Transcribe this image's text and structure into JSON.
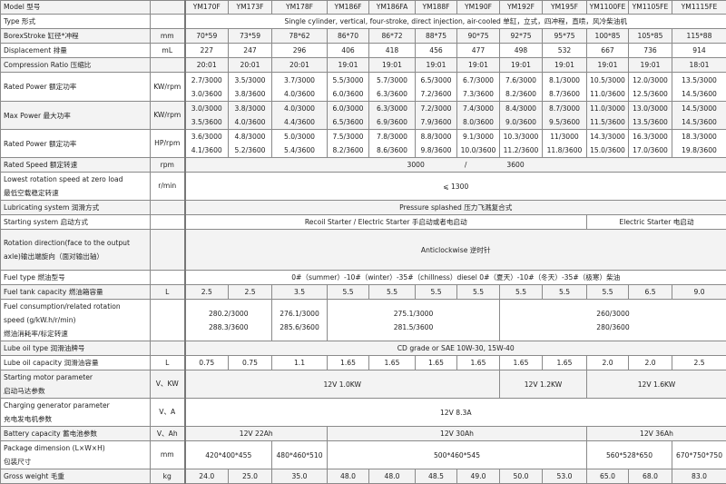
{
  "header": {
    "label": "Model 型号",
    "unit": "",
    "models": [
      "YM170F",
      "YM173F",
      "YM178F",
      "YM186F",
      "YM186FA",
      "YM188F",
      "YM190F",
      "YM192F",
      "YM195F",
      "YM1100FE",
      "YM1105FE",
      "YM1115FE"
    ]
  },
  "rows": [
    {
      "label": [
        "Type 形式"
      ],
      "unit": "",
      "cells": [
        {
          "span": 12,
          "lines": [
            "Single cylinder, vertical, four-stroke, direct injection, air-cooled 单缸，立式，四冲程，直喷，风冷柴油机"
          ]
        }
      ]
    },
    {
      "label": [
        "BorexStroke 缸径*冲程"
      ],
      "unit": "mm",
      "values": [
        "70*59",
        "73*59",
        "78*62",
        "86*70",
        "86*72",
        "88*75",
        "90*75",
        "92*75",
        "95*75",
        "100*85",
        "105*85",
        "115*88"
      ]
    },
    {
      "label": [
        "Displacement 排量"
      ],
      "unit": "mL",
      "values": [
        "227",
        "247",
        "296",
        "406",
        "418",
        "456",
        "477",
        "498",
        "532",
        "667",
        "736",
        "914"
      ]
    },
    {
      "label": [
        "Compression Ratio 压缩比"
      ],
      "unit": "",
      "values": [
        "20:01",
        "20:01",
        "20:01",
        "19:01",
        "19:01",
        "19:01",
        "19:01",
        "19:01",
        "19:01",
        "19:01",
        "19:01",
        "18:01"
      ]
    },
    {
      "label": [
        "Rated Power  额定功率"
      ],
      "unit": "KW/rpm",
      "pairs": [
        [
          "2.7/3000",
          "3.0/3600"
        ],
        [
          "3.5/3000",
          "3.8/3600"
        ],
        [
          "3.7/3000",
          "4.0/3600"
        ],
        [
          "5.5/3000",
          "6.0/3600"
        ],
        [
          "5.7/3000",
          "6.3/3600"
        ],
        [
          "6.5/3000",
          "7.2/3600"
        ],
        [
          "6.7/3000",
          "7.3/3600"
        ],
        [
          "7.6/3000",
          "8.2/3600"
        ],
        [
          "8.1/3000",
          "8.7/3600"
        ],
        [
          "10.5/3000",
          "11.0/3600"
        ],
        [
          "12.0/3000",
          "12.5/3600"
        ],
        [
          "13.5/3000",
          "14.5/3600"
        ]
      ]
    },
    {
      "label": [
        "Max Power  最大功率"
      ],
      "unit": "KW/rpm",
      "pairs": [
        [
          "3.0/3000",
          "3.5/3600"
        ],
        [
          "3.8/3000",
          "4.0/3600"
        ],
        [
          "4.0/3000",
          "4.4/3600"
        ],
        [
          "6.0/3000",
          "6.5/3600"
        ],
        [
          "6.3/3000",
          "6.9/3600"
        ],
        [
          "7.2/3000",
          "7.9/3600"
        ],
        [
          "7.4/3000",
          "8.0/3600"
        ],
        [
          "8.4/3000",
          "9.0/3600"
        ],
        [
          "8.7/3000",
          "9.5/3600"
        ],
        [
          "11.0/3000",
          "11.5/3600"
        ],
        [
          "13.0/3000",
          "13.5/3600"
        ],
        [
          "14.5/3000",
          "14.5/3600"
        ]
      ]
    },
    {
      "label": [
        "Rated Power 额定功率"
      ],
      "unit": "HP/rpm",
      "pairs": [
        [
          "3.6/3000",
          "4.1/3600"
        ],
        [
          "4.8/3000",
          "5.2/3600"
        ],
        [
          "5.0/3000",
          "5.4/3600"
        ],
        [
          "7.5/3000",
          "8.2/3600"
        ],
        [
          "7.8/3000",
          "8.6/3600"
        ],
        [
          "8.8/3000",
          "9.8/3600"
        ],
        [
          "9.1/3000",
          "10.0/3600"
        ],
        [
          "10.3/3000",
          "11.2/3600"
        ],
        [
          "11/3000",
          "11.8/3600"
        ],
        [
          "14.3/3000",
          "15.0/3600"
        ],
        [
          "16.3/3000",
          "17.0/3600"
        ],
        [
          "18.3/3000",
          "19.8/3600"
        ]
      ]
    },
    {
      "label": [
        "Rated Speed 额定转速"
      ],
      "unit": "rpm",
      "speed": [
        "3000",
        "/",
        "3600"
      ]
    },
    {
      "label": [
        "Lowest rotation speed at zero load",
        "最低空载稳定转速"
      ],
      "unit": "r/min",
      "cells": [
        {
          "span": 12,
          "lines": [
            "⩽ 1300"
          ]
        }
      ]
    },
    {
      "label": [
        "Lubricating system 润滑方式"
      ],
      "unit": "",
      "cells": [
        {
          "span": 12,
          "lines": [
            "Pressure splashed 压力飞溅复合式"
          ]
        }
      ]
    },
    {
      "label": [
        "Starting system 启动方式"
      ],
      "unit": "",
      "cells": [
        {
          "span": 9,
          "lines": [
            "Recoil Starter / Electric Starter 手启动或者电启动"
          ]
        },
        {
          "span": 3,
          "lines": [
            "Electric Starter  电启动"
          ]
        }
      ]
    },
    {
      "label": [
        "Rotation direction(face to the output",
        "axle)输出端旋向（面对输出轴）"
      ],
      "unit": "",
      "cells": [
        {
          "span": 12,
          "lines": [
            "Anticlockwise 逆时针"
          ]
        }
      ]
    },
    {
      "label": [
        "Fuel type 燃油型号"
      ],
      "unit": "",
      "cells": [
        {
          "span": 12,
          "lines": [
            "0#（summer）-10#（winter）-35#（chillness）diesel 0#（夏天）-10#（冬天）-35#（极寒）柴油"
          ]
        }
      ]
    },
    {
      "label": [
        "Fuel tank capacity  燃油箱容量"
      ],
      "unit": "L",
      "values": [
        "2.5",
        "2.5",
        "3.5",
        "5.5",
        "5.5",
        "5.5",
        "5.5",
        "5.5",
        "5.5",
        "5.5",
        "6.5",
        "9.0"
      ]
    },
    {
      "label": [
        "Fuel consumption/related rotation",
        "speed (g/kW.h/r/min)",
        "燃油消耗率/标定转速"
      ],
      "unit": "",
      "cells": [
        {
          "span": 2,
          "lines": [
            "280.2/3000",
            "288.3/3600"
          ]
        },
        {
          "span": 1,
          "lines": [
            "276.1/3000",
            "285.6/3600"
          ]
        },
        {
          "span": 4,
          "lines": [
            "275.1/3000",
            "281.5/3600"
          ]
        },
        {
          "span": 5,
          "lines": [
            "260/3000",
            "280/3600"
          ]
        }
      ]
    },
    {
      "label": [
        "Lube oil type 润滑油牌号"
      ],
      "unit": "",
      "cells": [
        {
          "span": 12,
          "lines": [
            "CD grade or SAE 10W-30, 15W-40"
          ]
        }
      ]
    },
    {
      "label": [
        "Lube oil capacity  润滑油容量"
      ],
      "unit": "L",
      "values": [
        "0.75",
        "0.75",
        "1.1",
        "1.65",
        "1.65",
        "1.65",
        "1.65",
        "1.65",
        "1.65",
        "2.0",
        "2.0",
        "2.5"
      ]
    },
    {
      "label": [
        "Starting motor parameter",
        "启动马达参数"
      ],
      "unit": "V、KW",
      "cells": [
        {
          "span": 7,
          "lines": [
            "12V 1.0KW"
          ]
        },
        {
          "span": 2,
          "lines": [
            "12V 1.2KW"
          ]
        },
        {
          "span": 3,
          "lines": [
            "12V 1.6KW"
          ]
        }
      ]
    },
    {
      "label": [
        "Charging generator parameter",
        "充电发电机参数"
      ],
      "unit": "V、A",
      "cells": [
        {
          "span": 12,
          "lines": [
            "12V  8.3A"
          ]
        }
      ]
    },
    {
      "label": [
        "Battery capacity  蓄电池参数"
      ],
      "unit": "V、Ah",
      "cells": [
        {
          "span": 3,
          "lines": [
            "12V    22Ah"
          ]
        },
        {
          "span": 6,
          "lines": [
            "12V    30Ah"
          ]
        },
        {
          "span": 3,
          "lines": [
            "12V    36Ah"
          ]
        }
      ]
    },
    {
      "label": [
        "Package dimension (L×W×H)",
        "包装尺寸"
      ],
      "unit": "mm",
      "cells": [
        {
          "span": 2,
          "lines": [
            "420*400*455"
          ]
        },
        {
          "span": 1,
          "lines": [
            "480*460*510"
          ]
        },
        {
          "span": 6,
          "lines": [
            "500*460*545"
          ]
        },
        {
          "span": 2,
          "lines": [
            "560*528*650"
          ]
        },
        {
          "span": 1,
          "lines": [
            "670*750*750"
          ]
        }
      ]
    },
    {
      "label": [
        "Gross weight  毛重"
      ],
      "unit": "kg",
      "values": [
        "24.0",
        "25.0",
        "35.0",
        "48.0",
        "48.0",
        "48.5",
        "49.0",
        "50.0",
        "53.0",
        "65.0",
        "68.0",
        "83.0"
      ]
    }
  ]
}
